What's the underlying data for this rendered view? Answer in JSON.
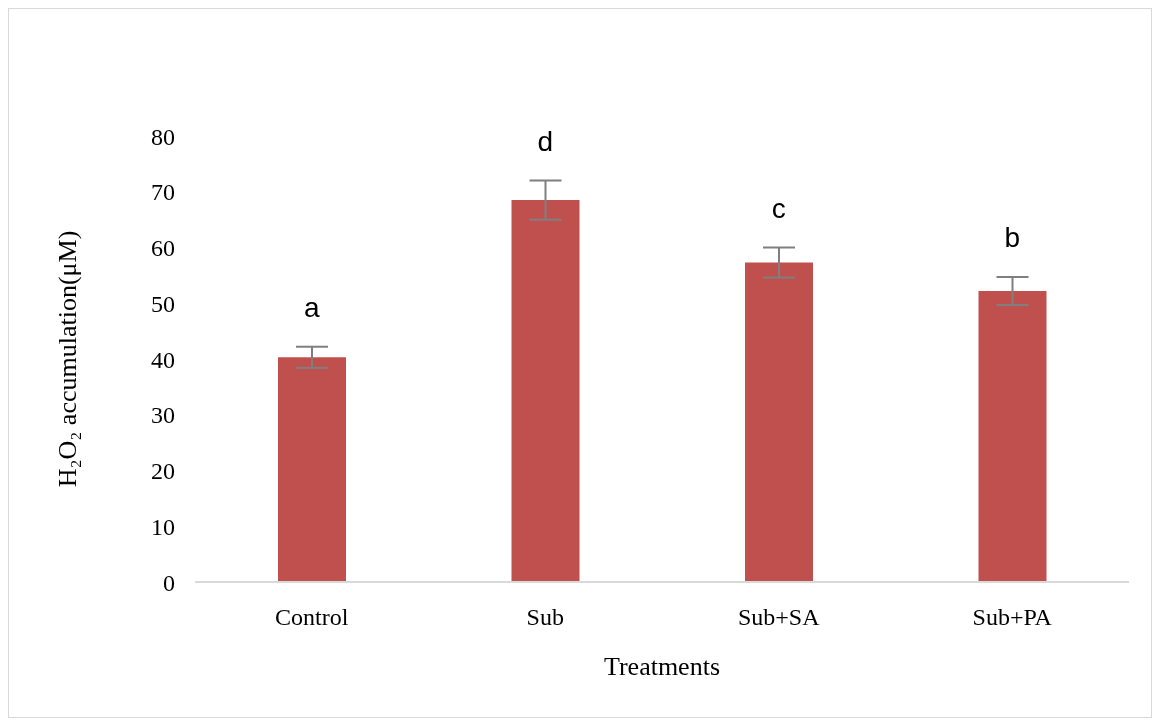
{
  "chart_data": {
    "type": "bar",
    "xlabel": "Treatments",
    "ylabel": "H₂O₂ accumulation(μM)",
    "categories": [
      "Control",
      "Sub",
      "Sub+SA",
      "Sub+PA"
    ],
    "values": [
      40.3,
      68.5,
      57.3,
      52.2
    ],
    "errors": [
      1.9,
      3.5,
      2.7,
      2.5
    ],
    "color": "#c0504d",
    "ylim": [
      0,
      80
    ],
    "yticks": [
      0,
      10,
      20,
      30,
      40,
      50,
      60,
      70,
      80
    ],
    "grid": false,
    "legend": false,
    "annotations": [
      {
        "text": "a",
        "x": "Control",
        "y": 42.2
      },
      {
        "text": "d",
        "x": "Sub",
        "y": 72
      },
      {
        "text": "c",
        "x": "Sub+SA",
        "y": 60
      },
      {
        "text": "b",
        "x": "Sub+PA",
        "y": 54.7
      }
    ]
  }
}
